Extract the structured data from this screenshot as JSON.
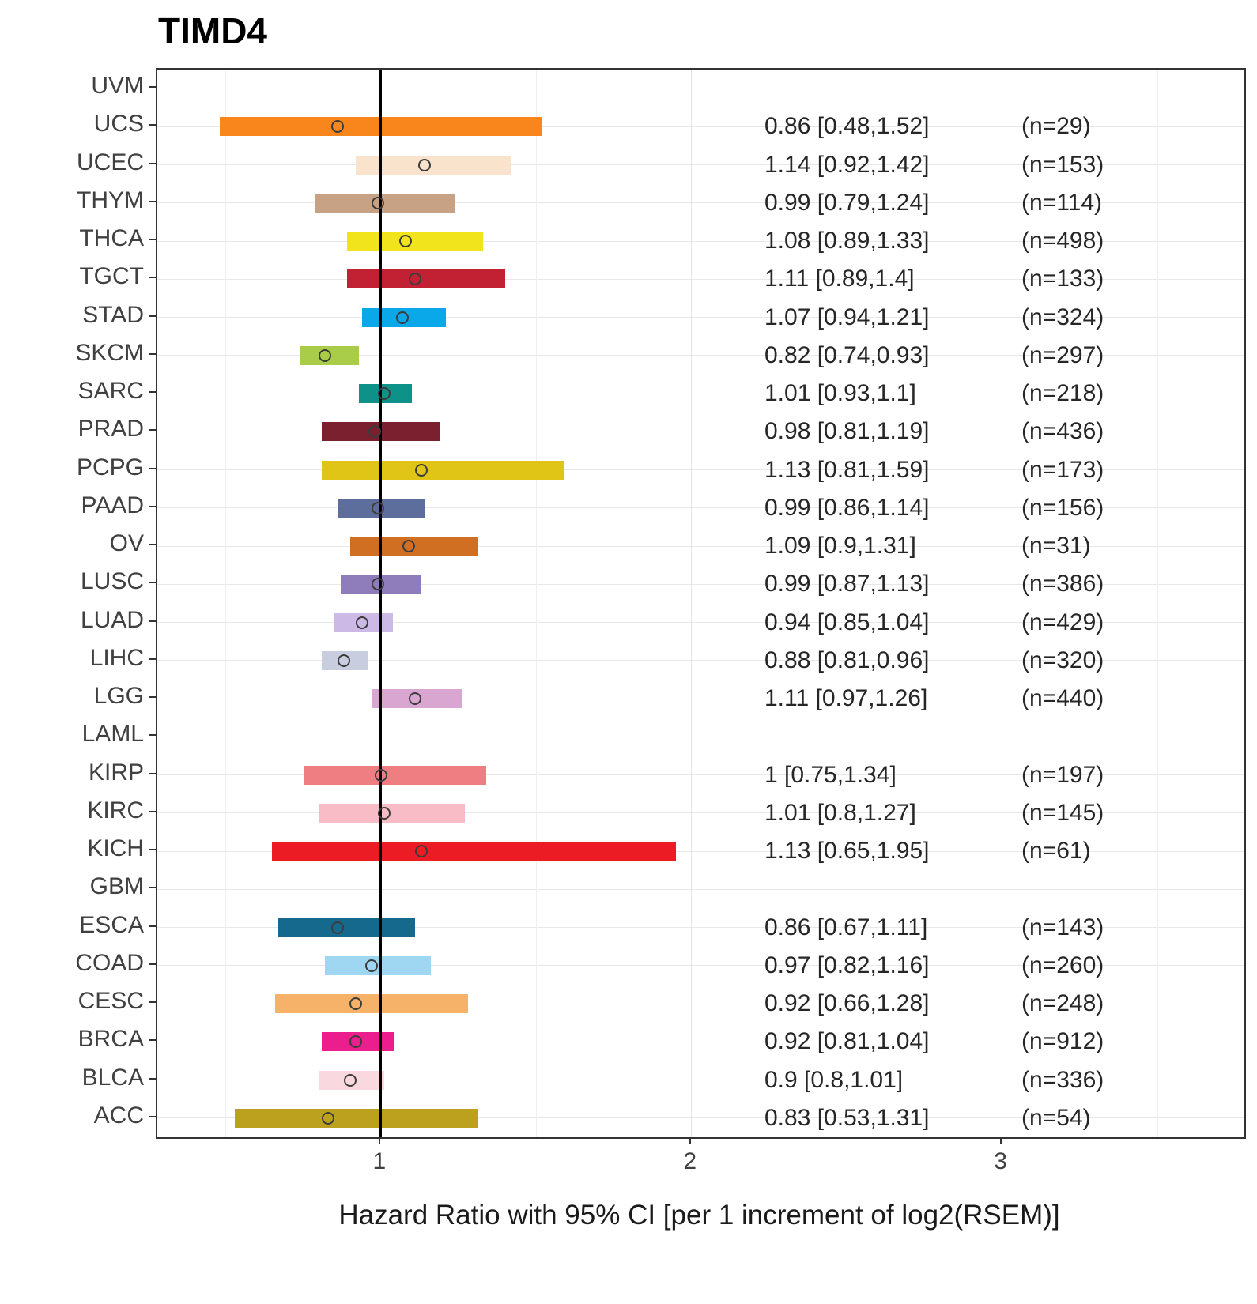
{
  "title": "TIMD4",
  "xlabel": "Hazard Ratio with 95% CI [per 1 increment of log2(RSEM)]",
  "chart_data": {
    "type": "forest",
    "axis": {
      "min": 0.28,
      "max": 3.78,
      "ticks": [
        1,
        2,
        3
      ],
      "tick_labels": [
        "1",
        "2",
        "3"
      ],
      "minor_ticks": [
        0.5,
        1.5,
        2.5,
        3.5
      ],
      "refline": 1
    },
    "style": {
      "point_outline": "#3c3c3c",
      "refline_color": "#000000",
      "grid_major": "#e3e3e3",
      "grid_minor": "#f0f0f0",
      "axis_text_color": "#404040",
      "annotation_color": "#262626"
    },
    "rows": [
      {
        "label": "UVM",
        "empty": true
      },
      {
        "label": "UCS",
        "hr": 0.86,
        "lo": 0.48,
        "hi": 1.52,
        "n": 29,
        "hr_text": "0.86 [0.48,1.52]",
        "n_text": "(n=29)",
        "color": "#F8861D"
      },
      {
        "label": "UCEC",
        "hr": 1.14,
        "lo": 0.92,
        "hi": 1.42,
        "n": 153,
        "hr_text": "1.14 [0.92,1.42]",
        "n_text": "(n=153)",
        "color": "#FAE3CC"
      },
      {
        "label": "THYM",
        "hr": 0.99,
        "lo": 0.79,
        "hi": 1.24,
        "n": 114,
        "hr_text": "0.99 [0.79,1.24]",
        "n_text": "(n=114)",
        "color": "#C7A284"
      },
      {
        "label": "THCA",
        "hr": 1.08,
        "lo": 0.89,
        "hi": 1.33,
        "n": 498,
        "hr_text": "1.08 [0.89,1.33]",
        "n_text": "(n=498)",
        "color": "#F2E41C"
      },
      {
        "label": "TGCT",
        "hr": 1.11,
        "lo": 0.89,
        "hi": 1.4,
        "n": 133,
        "hr_text": "1.11 [0.89,1.4]",
        "n_text": "(n=133)",
        "color": "#C22133"
      },
      {
        "label": "STAD",
        "hr": 1.07,
        "lo": 0.94,
        "hi": 1.21,
        "n": 324,
        "hr_text": "1.07 [0.94,1.21]",
        "n_text": "(n=324)",
        "color": "#0AA7E9"
      },
      {
        "label": "SKCM",
        "hr": 0.82,
        "lo": 0.74,
        "hi": 0.93,
        "n": 297,
        "hr_text": "0.82 [0.74,0.93]",
        "n_text": "(n=297)",
        "color": "#A9CC49"
      },
      {
        "label": "SARC",
        "hr": 1.01,
        "lo": 0.93,
        "hi": 1.1,
        "n": 218,
        "hr_text": "1.01 [0.93,1.1]",
        "n_text": "(n=218)",
        "color": "#0D9188"
      },
      {
        "label": "PRAD",
        "hr": 0.98,
        "lo": 0.81,
        "hi": 1.19,
        "n": 436,
        "hr_text": "0.98 [0.81,1.19]",
        "n_text": "(n=436)",
        "color": "#7A202E"
      },
      {
        "label": "PCPG",
        "hr": 1.13,
        "lo": 0.81,
        "hi": 1.59,
        "n": 173,
        "hr_text": "1.13 [0.81,1.59]",
        "n_text": "(n=173)",
        "color": "#E0C517"
      },
      {
        "label": "PAAD",
        "hr": 0.99,
        "lo": 0.86,
        "hi": 1.14,
        "n": 156,
        "hr_text": "0.99 [0.86,1.14]",
        "n_text": "(n=156)",
        "color": "#5D6D9C"
      },
      {
        "label": "OV",
        "hr": 1.09,
        "lo": 0.9,
        "hi": 1.31,
        "n": 31,
        "hr_text": "1.09 [0.9,1.31]",
        "n_text": "(n=31)",
        "color": "#D06F21"
      },
      {
        "label": "LUSC",
        "hr": 0.99,
        "lo": 0.87,
        "hi": 1.13,
        "n": 386,
        "hr_text": "0.99 [0.87,1.13]",
        "n_text": "(n=386)",
        "color": "#8F7CBB"
      },
      {
        "label": "LUAD",
        "hr": 0.94,
        "lo": 0.85,
        "hi": 1.04,
        "n": 429,
        "hr_text": "0.94 [0.85,1.04]",
        "n_text": "(n=429)",
        "color": "#CDB9E5"
      },
      {
        "label": "LIHC",
        "hr": 0.88,
        "lo": 0.81,
        "hi": 0.96,
        "n": 320,
        "hr_text": "0.88 [0.81,0.96]",
        "n_text": "(n=320)",
        "color": "#C8CEDF"
      },
      {
        "label": "LGG",
        "hr": 1.11,
        "lo": 0.97,
        "hi": 1.26,
        "n": 440,
        "hr_text": "1.11 [0.97,1.26]",
        "n_text": "(n=440)",
        "color": "#D9A6D2"
      },
      {
        "label": "LAML",
        "empty": true
      },
      {
        "label": "KIRP",
        "hr": 1.0,
        "lo": 0.75,
        "hi": 1.34,
        "n": 197,
        "hr_text": "1 [0.75,1.34]",
        "n_text": "(n=197)",
        "color": "#EF7E82"
      },
      {
        "label": "KIRC",
        "hr": 1.01,
        "lo": 0.8,
        "hi": 1.27,
        "n": 145,
        "hr_text": "1.01 [0.8,1.27]",
        "n_text": "(n=145)",
        "color": "#F7BCC5"
      },
      {
        "label": "KICH",
        "hr": 1.13,
        "lo": 0.65,
        "hi": 1.95,
        "n": 61,
        "hr_text": "1.13 [0.65,1.95]",
        "n_text": "(n=61)",
        "color": "#EC1C24"
      },
      {
        "label": "GBM",
        "empty": true
      },
      {
        "label": "ESCA",
        "hr": 0.86,
        "lo": 0.67,
        "hi": 1.11,
        "n": 143,
        "hr_text": "0.86 [0.67,1.11]",
        "n_text": "(n=143)",
        "color": "#15698C"
      },
      {
        "label": "COAD",
        "hr": 0.97,
        "lo": 0.82,
        "hi": 1.16,
        "n": 260,
        "hr_text": "0.97 [0.82,1.16]",
        "n_text": "(n=260)",
        "color": "#9FD7F2"
      },
      {
        "label": "CESC",
        "hr": 0.92,
        "lo": 0.66,
        "hi": 1.28,
        "n": 248,
        "hr_text": "0.92 [0.66,1.28]",
        "n_text": "(n=248)",
        "color": "#F5B268"
      },
      {
        "label": "BRCA",
        "hr": 0.92,
        "lo": 0.81,
        "hi": 1.04,
        "n": 912,
        "hr_text": "0.92 [0.81,1.04]",
        "n_text": "(n=912)",
        "color": "#EC1D8D"
      },
      {
        "label": "BLCA",
        "hr": 0.9,
        "lo": 0.8,
        "hi": 1.01,
        "n": 336,
        "hr_text": "0.9 [0.8,1.01]",
        "n_text": "(n=336)",
        "color": "#F9D9DF"
      },
      {
        "label": "ACC",
        "hr": 0.83,
        "lo": 0.53,
        "hi": 1.31,
        "n": 54,
        "hr_text": "0.83 [0.53,1.31]",
        "n_text": "(n=54)",
        "color": "#BCA11F"
      }
    ]
  }
}
